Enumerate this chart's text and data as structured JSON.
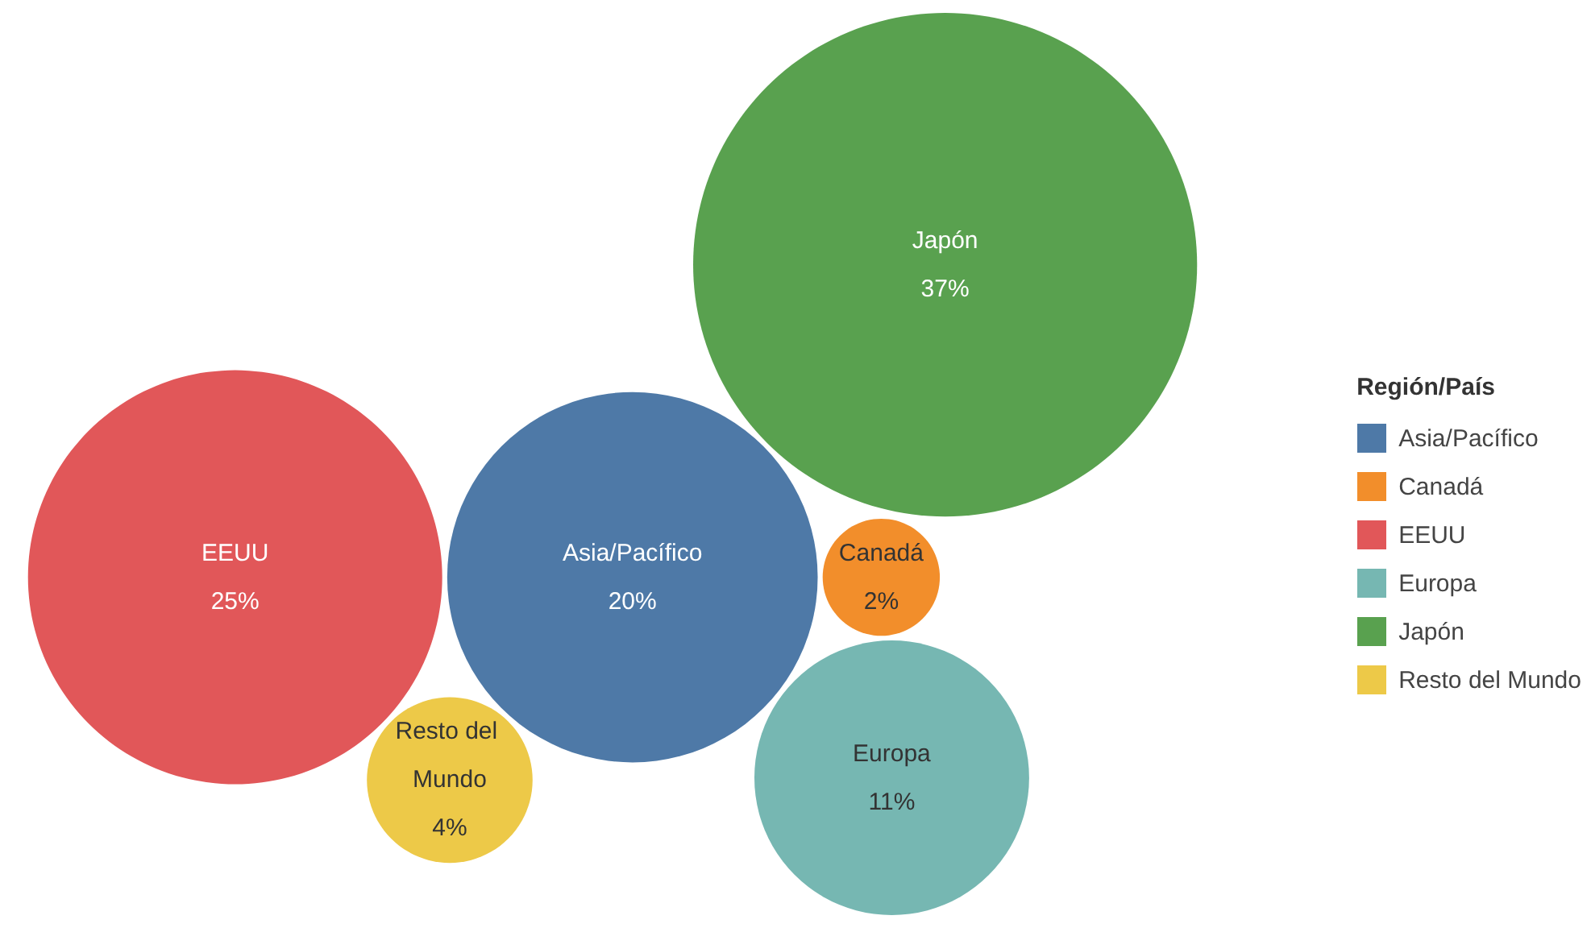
{
  "chart_data": {
    "type": "other",
    "legend_title": "Región/País",
    "categories": [
      "Asia/Pacífico",
      "Canadá",
      "EEUU",
      "Europa",
      "Japón",
      "Resto del Mundo"
    ],
    "values": [
      20,
      2,
      25,
      11,
      37,
      4
    ],
    "value_labels": [
      "20%",
      "2%",
      "25%",
      "11%",
      "37%",
      "4%"
    ],
    "colors": [
      "#4e79a7",
      "#f28e2b",
      "#e15759",
      "#76b7b2",
      "#59a14f",
      "#edc948"
    ]
  }
}
